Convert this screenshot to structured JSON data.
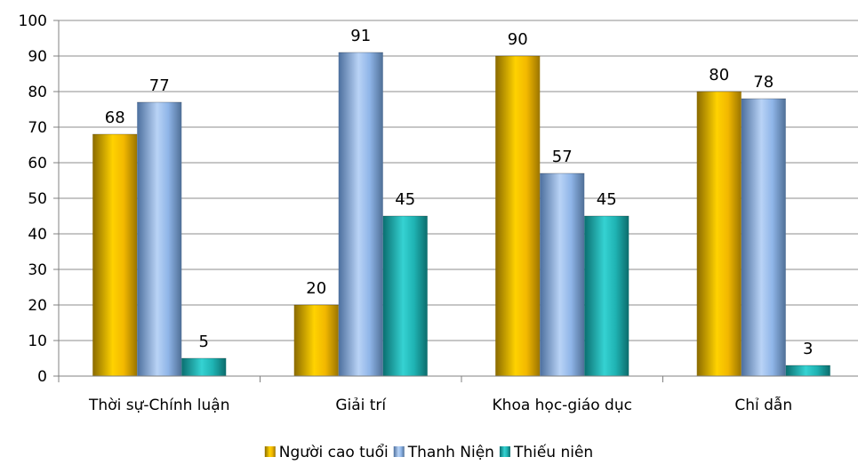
{
  "chart_data": {
    "type": "bar",
    "categories": [
      "Thời sự-Chính luận",
      "Giải trí",
      "Khoa học-giáo dục",
      "Chỉ dẫn"
    ],
    "series": [
      {
        "name": "Người cao tuổi",
        "values": [
          68,
          20,
          90,
          80
        ],
        "color": "#f2b800"
      },
      {
        "name": "Thanh Niện",
        "values": [
          77,
          91,
          57,
          78
        ],
        "color": "#8fb5e8"
      },
      {
        "name": "Thiếu niên",
        "values": [
          5,
          45,
          45,
          3
        ],
        "color": "#1fb3b3"
      }
    ],
    "ylim": [
      0,
      100
    ],
    "yticks": [
      0,
      10,
      20,
      30,
      40,
      50,
      60,
      70,
      80,
      90,
      100
    ],
    "grid": true,
    "legend_position": "bottom"
  }
}
